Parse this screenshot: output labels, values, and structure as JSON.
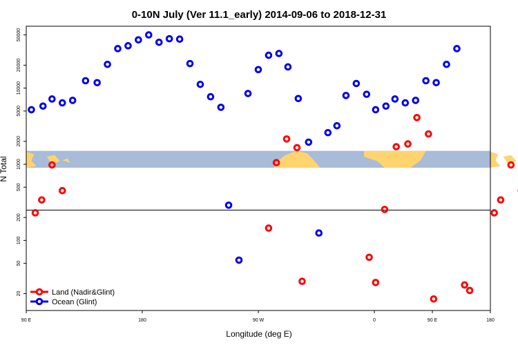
{
  "chart_data": {
    "type": "scatter",
    "title": "0-10N July (Ver 11.1_early)   2014-09-06 to 2018-12-31",
    "xlabel": "Longitude (deg E)",
    "ylabel": "N Total",
    "y_scale": "log",
    "xlim": [
      90,
      450
    ],
    "ylim": [
      12,
      65000
    ],
    "x_ticks": [
      {
        "value": 90,
        "label": "90 E"
      },
      {
        "value": 180,
        "label": "180"
      },
      {
        "value": 270,
        "label": "90 W"
      },
      {
        "value": 360,
        "label": "0"
      },
      {
        "value": 450,
        "label": "180"
      }
    ],
    "x_minor_ticks": [
      {
        "value": 405,
        "label": "90 E"
      }
    ],
    "y_ticks": [
      {
        "value": 20,
        "label": "20"
      },
      {
        "value": 50,
        "label": "50"
      },
      {
        "value": 100,
        "label": "100"
      },
      {
        "value": 200,
        "label": "200"
      },
      {
        "value": 500,
        "label": "500"
      },
      {
        "value": 1000,
        "label": "1000"
      },
      {
        "value": 2000,
        "label": "2000"
      },
      {
        "value": 5000,
        "label": "5000"
      },
      {
        "value": 10000,
        "label": "10000"
      },
      {
        "value": 20000,
        "label": "20000"
      },
      {
        "value": 50000,
        "label": "50000"
      }
    ],
    "reference_line_y": 250,
    "map_strip": {
      "y_min": 900,
      "y_max": 1500,
      "ocean_color": "#a8bbd8",
      "land_color": "#ffd46e"
    },
    "series": [
      {
        "name": "Land (Nadir&Glint)",
        "color": "#ff0000",
        "points": [
          {
            "x": 97,
            "y": 230
          },
          {
            "x": 102,
            "y": 340
          },
          {
            "x": 110,
            "y": 980
          },
          {
            "x": 118,
            "y": 450
          },
          {
            "x": 278,
            "y": 145
          },
          {
            "x": 284,
            "y": 1050
          },
          {
            "x": 292,
            "y": 2150
          },
          {
            "x": 300,
            "y": 1650
          },
          {
            "x": 304,
            "y": 29
          },
          {
            "x": 356,
            "y": 60
          },
          {
            "x": 361,
            "y": 28
          },
          {
            "x": 368,
            "y": 255
          },
          {
            "x": 377,
            "y": 1700
          },
          {
            "x": 386,
            "y": 1850
          },
          {
            "x": 393,
            "y": 4100
          },
          {
            "x": 402,
            "y": 2500
          },
          {
            "x": 406,
            "y": 17
          },
          {
            "x": 430,
            "y": 26
          },
          {
            "x": 434,
            "y": 22
          },
          {
            "x": 453,
            "y": 230
          },
          {
            "x": 458,
            "y": 340
          },
          {
            "x": 466,
            "y": 980
          },
          {
            "x": 474,
            "y": 450
          }
        ]
      },
      {
        "name": "Ocean (Glint)",
        "color": "#0000ee",
        "points": [
          {
            "x": 94,
            "y": 5200
          },
          {
            "x": 103,
            "y": 5800
          },
          {
            "x": 110,
            "y": 7200
          },
          {
            "x": 118,
            "y": 6400
          },
          {
            "x": 126,
            "y": 6900
          },
          {
            "x": 136,
            "y": 12500
          },
          {
            "x": 145,
            "y": 11800
          },
          {
            "x": 153,
            "y": 20500
          },
          {
            "x": 161,
            "y": 33000
          },
          {
            "x": 169,
            "y": 36000
          },
          {
            "x": 177,
            "y": 43000
          },
          {
            "x": 185,
            "y": 50000
          },
          {
            "x": 193,
            "y": 40000
          },
          {
            "x": 201,
            "y": 44500
          },
          {
            "x": 209,
            "y": 44000
          },
          {
            "x": 217,
            "y": 21000
          },
          {
            "x": 225,
            "y": 11200
          },
          {
            "x": 233,
            "y": 7700
          },
          {
            "x": 241,
            "y": 5600
          },
          {
            "x": 247,
            "y": 290
          },
          {
            "x": 255,
            "y": 55
          },
          {
            "x": 262,
            "y": 8500
          },
          {
            "x": 270,
            "y": 17500
          },
          {
            "x": 278,
            "y": 27000
          },
          {
            "x": 286,
            "y": 28500
          },
          {
            "x": 293,
            "y": 19000
          },
          {
            "x": 301,
            "y": 7300
          },
          {
            "x": 309,
            "y": 1950
          },
          {
            "x": 317,
            "y": 125
          },
          {
            "x": 324,
            "y": 2600
          },
          {
            "x": 331,
            "y": 3200
          },
          {
            "x": 338,
            "y": 8000
          },
          {
            "x": 346,
            "y": 11500
          },
          {
            "x": 354,
            "y": 8300
          },
          {
            "x": 361,
            "y": 5200
          },
          {
            "x": 369,
            "y": 5800
          },
          {
            "x": 376,
            "y": 7200
          },
          {
            "x": 384,
            "y": 6400
          },
          {
            "x": 392,
            "y": 6900
          },
          {
            "x": 400,
            "y": 12500
          },
          {
            "x": 408,
            "y": 11800
          },
          {
            "x": 416,
            "y": 20500
          },
          {
            "x": 424,
            "y": 33000
          }
        ]
      }
    ],
    "legend": {
      "placement": "bottom-left",
      "entries": [
        "Land (Nadir&Glint)",
        "Ocean (Glint)"
      ]
    }
  }
}
